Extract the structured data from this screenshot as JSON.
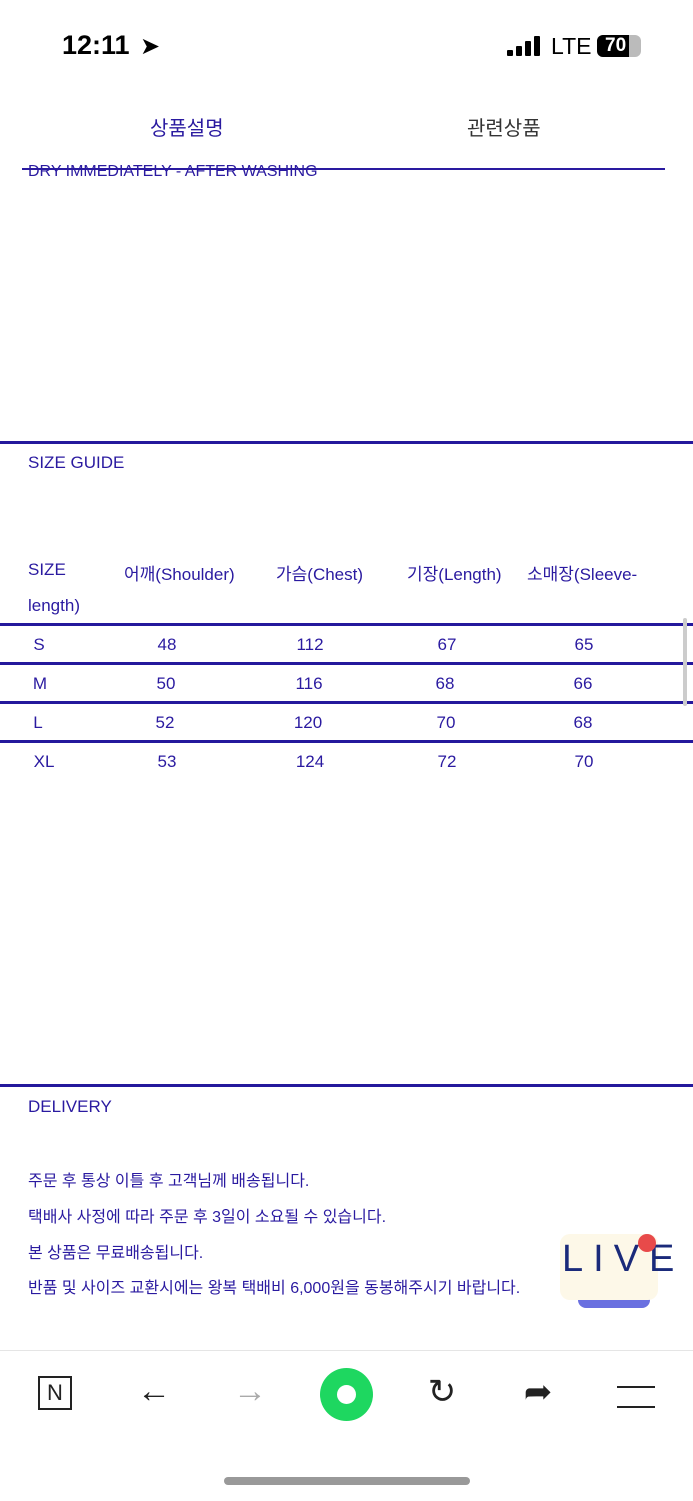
{
  "status": {
    "time": "12:11",
    "network": "LTE",
    "battery": "70"
  },
  "tabs": [
    {
      "label": "상품설명",
      "active": true
    },
    {
      "label": "관련상품",
      "active": false
    }
  ],
  "care_text": "DRY IMMEDIATELY - AFTER WASHING",
  "size_guide": {
    "title": "SIZE GUIDE",
    "headers": [
      "SIZE",
      "어깨(Shoulder)",
      "가슴(Chest)",
      "기장(Length)",
      "소매장(Sleeve-",
      "length)"
    ],
    "rows": [
      [
        "S",
        "48",
        "112",
        "67",
        "65"
      ],
      [
        "M",
        "50",
        "116",
        "68",
        "66"
      ],
      [
        "L",
        "52",
        "120",
        "70",
        "68"
      ],
      [
        "XL",
        "53",
        "124",
        "72",
        "70"
      ]
    ]
  },
  "delivery": {
    "title": "DELIVERY",
    "lines": [
      "주문 후  통상 이틀 후 고객님께 배송됩니다.",
      "택배사 사정에 따라 주문 후 3일이 소요될 수 있습니다.",
      "본 상품은 무료배송됩니다.",
      "반품 및 사이즈 교환시에는  왕복 택배비 6,000원을 동봉해주시기 바랍니다."
    ]
  },
  "live_badge": "LIVE",
  "colors": {
    "accent": "#2a1aa0",
    "green": "#1ed760"
  }
}
